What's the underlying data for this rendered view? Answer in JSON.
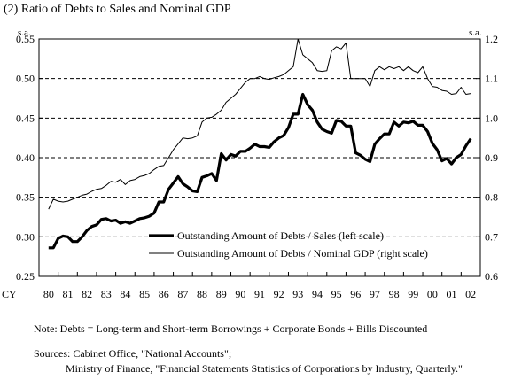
{
  "header": {
    "title": "(2) Ratio of Debts to Sales and Nominal GDP"
  },
  "chart_data": {
    "type": "line",
    "title": "(2) Ratio of Debts to Sales and Nominal GDP",
    "left_unit": "s.a.",
    "right_unit": "s.a.",
    "x_axis_label": "CY",
    "x_tick_labels": [
      "80",
      "81",
      "82",
      "83",
      "84",
      "85",
      "86",
      "87",
      "88",
      "89",
      "90",
      "91",
      "92",
      "93",
      "94",
      "95",
      "96",
      "97",
      "98",
      "99",
      "00",
      "01",
      "02"
    ],
    "x_range": [
      1980.0,
      2003.0
    ],
    "left_axis": {
      "range": [
        0.25,
        0.55
      ],
      "ticks": [
        "0.25",
        "0.30",
        "0.35",
        "0.40",
        "0.45",
        "0.50",
        "0.55"
      ]
    },
    "right_axis": {
      "range": [
        0.6,
        1.2
      ],
      "ticks": [
        "0.6",
        "0.7",
        "0.8",
        "0.9",
        "1.0",
        "1.1",
        "1.2"
      ]
    },
    "grid": "horizontal dashed",
    "legend_placement": "lower-right",
    "series": [
      {
        "name": "Outstanding Amount of Debts / Sales (left scale)",
        "axis": "left",
        "style": "thick",
        "points": [
          [
            1980.0,
            0.286
          ],
          [
            1980.25,
            0.286
          ],
          [
            1980.5,
            0.298
          ],
          [
            1980.75,
            0.301
          ],
          [
            1981.0,
            0.3
          ],
          [
            1981.25,
            0.294
          ],
          [
            1981.5,
            0.294
          ],
          [
            1981.75,
            0.3
          ],
          [
            1982.0,
            0.308
          ],
          [
            1982.25,
            0.313
          ],
          [
            1982.5,
            0.315
          ],
          [
            1982.75,
            0.322
          ],
          [
            1983.0,
            0.323
          ],
          [
            1983.25,
            0.32
          ],
          [
            1983.5,
            0.321
          ],
          [
            1983.75,
            0.317
          ],
          [
            1984.0,
            0.319
          ],
          [
            1984.25,
            0.317
          ],
          [
            1984.5,
            0.32
          ],
          [
            1984.75,
            0.323
          ],
          [
            1985.0,
            0.324
          ],
          [
            1985.25,
            0.326
          ],
          [
            1985.5,
            0.33
          ],
          [
            1985.75,
            0.344
          ],
          [
            1986.0,
            0.344
          ],
          [
            1986.25,
            0.36
          ],
          [
            1986.5,
            0.368
          ],
          [
            1986.75,
            0.376
          ],
          [
            1987.0,
            0.367
          ],
          [
            1987.25,
            0.363
          ],
          [
            1987.5,
            0.358
          ],
          [
            1987.75,
            0.357
          ],
          [
            1988.0,
            0.375
          ],
          [
            1988.25,
            0.377
          ],
          [
            1988.5,
            0.38
          ],
          [
            1988.75,
            0.371
          ],
          [
            1989.0,
            0.405
          ],
          [
            1989.25,
            0.397
          ],
          [
            1989.5,
            0.404
          ],
          [
            1989.75,
            0.402
          ],
          [
            1990.0,
            0.408
          ],
          [
            1990.25,
            0.408
          ],
          [
            1990.5,
            0.412
          ],
          [
            1990.75,
            0.417
          ],
          [
            1991.0,
            0.414
          ],
          [
            1991.25,
            0.414
          ],
          [
            1991.5,
            0.413
          ],
          [
            1991.75,
            0.42
          ],
          [
            1992.0,
            0.425
          ],
          [
            1992.25,
            0.428
          ],
          [
            1992.5,
            0.438
          ],
          [
            1992.75,
            0.455
          ],
          [
            1993.0,
            0.455
          ],
          [
            1993.25,
            0.48
          ],
          [
            1993.5,
            0.467
          ],
          [
            1993.75,
            0.46
          ],
          [
            1994.0,
            0.445
          ],
          [
            1994.25,
            0.436
          ],
          [
            1994.5,
            0.433
          ],
          [
            1994.75,
            0.431
          ],
          [
            1995.0,
            0.447
          ],
          [
            1995.25,
            0.446
          ],
          [
            1995.5,
            0.44
          ],
          [
            1995.75,
            0.44
          ],
          [
            1996.0,
            0.406
          ],
          [
            1996.25,
            0.403
          ],
          [
            1996.5,
            0.398
          ],
          [
            1996.75,
            0.395
          ],
          [
            1997.0,
            0.417
          ],
          [
            1997.25,
            0.424
          ],
          [
            1997.5,
            0.43
          ],
          [
            1997.75,
            0.43
          ],
          [
            1998.0,
            0.445
          ],
          [
            1998.25,
            0.44
          ],
          [
            1998.5,
            0.445
          ],
          [
            1998.75,
            0.444
          ],
          [
            1999.0,
            0.446
          ],
          [
            1999.25,
            0.441
          ],
          [
            1999.5,
            0.441
          ],
          [
            1999.75,
            0.433
          ],
          [
            2000.0,
            0.418
          ],
          [
            2000.25,
            0.41
          ],
          [
            2000.5,
            0.396
          ],
          [
            2000.75,
            0.399
          ],
          [
            2001.0,
            0.392
          ],
          [
            2001.25,
            0.4
          ],
          [
            2001.5,
            0.404
          ],
          [
            2001.75,
            0.415
          ],
          [
            2002.0,
            0.424
          ]
        ]
      },
      {
        "name": "Outstanding Amount of Debts / Nominal GDP (right scale)",
        "axis": "right",
        "style": "thin",
        "points": [
          [
            1980.0,
            0.77
          ],
          [
            1980.25,
            0.795
          ],
          [
            1980.5,
            0.79
          ],
          [
            1980.75,
            0.788
          ],
          [
            1981.0,
            0.79
          ],
          [
            1981.25,
            0.795
          ],
          [
            1981.5,
            0.8
          ],
          [
            1981.75,
            0.805
          ],
          [
            1982.0,
            0.808
          ],
          [
            1982.25,
            0.815
          ],
          [
            1982.5,
            0.82
          ],
          [
            1982.75,
            0.822
          ],
          [
            1983.0,
            0.83
          ],
          [
            1983.25,
            0.84
          ],
          [
            1983.5,
            0.838
          ],
          [
            1983.75,
            0.845
          ],
          [
            1984.0,
            0.832
          ],
          [
            1984.25,
            0.842
          ],
          [
            1984.5,
            0.845
          ],
          [
            1984.75,
            0.852
          ],
          [
            1985.0,
            0.855
          ],
          [
            1985.25,
            0.86
          ],
          [
            1985.5,
            0.87
          ],
          [
            1985.75,
            0.878
          ],
          [
            1986.0,
            0.88
          ],
          [
            1986.25,
            0.9
          ],
          [
            1986.5,
            0.92
          ],
          [
            1986.75,
            0.935
          ],
          [
            1987.0,
            0.95
          ],
          [
            1987.25,
            0.948
          ],
          [
            1987.5,
            0.95
          ],
          [
            1987.75,
            0.955
          ],
          [
            1988.0,
            0.99
          ],
          [
            1988.25,
            1.0
          ],
          [
            1988.5,
            1.002
          ],
          [
            1988.75,
            1.01
          ],
          [
            1989.0,
            1.02
          ],
          [
            1989.25,
            1.04
          ],
          [
            1989.5,
            1.05
          ],
          [
            1989.75,
            1.06
          ],
          [
            1990.0,
            1.075
          ],
          [
            1990.25,
            1.09
          ],
          [
            1990.5,
            1.1
          ],
          [
            1990.75,
            1.1
          ],
          [
            1991.0,
            1.105
          ],
          [
            1991.25,
            1.1
          ],
          [
            1991.5,
            1.098
          ],
          [
            1991.75,
            1.102
          ],
          [
            1992.0,
            1.105
          ],
          [
            1992.25,
            1.11
          ],
          [
            1992.5,
            1.12
          ],
          [
            1992.75,
            1.13
          ],
          [
            1993.0,
            1.2
          ],
          [
            1993.25,
            1.16
          ],
          [
            1993.5,
            1.15
          ],
          [
            1993.75,
            1.14
          ],
          [
            1994.0,
            1.12
          ],
          [
            1994.25,
            1.118
          ],
          [
            1994.5,
            1.12
          ],
          [
            1994.75,
            1.17
          ],
          [
            1995.0,
            1.18
          ],
          [
            1995.25,
            1.175
          ],
          [
            1995.5,
            1.19
          ],
          [
            1995.75,
            1.1
          ],
          [
            1996.0,
            1.1
          ],
          [
            1996.25,
            1.1
          ],
          [
            1996.5,
            1.1
          ],
          [
            1996.75,
            1.08
          ],
          [
            1997.0,
            1.12
          ],
          [
            1997.25,
            1.13
          ],
          [
            1997.5,
            1.122
          ],
          [
            1997.75,
            1.13
          ],
          [
            1998.0,
            1.125
          ],
          [
            1998.25,
            1.13
          ],
          [
            1998.5,
            1.12
          ],
          [
            1998.75,
            1.13
          ],
          [
            1999.0,
            1.12
          ],
          [
            1999.25,
            1.115
          ],
          [
            1999.5,
            1.13
          ],
          [
            1999.75,
            1.1
          ],
          [
            2000.0,
            1.08
          ],
          [
            2000.25,
            1.078
          ],
          [
            2000.5,
            1.07
          ],
          [
            2000.75,
            1.068
          ],
          [
            2001.0,
            1.06
          ],
          [
            2001.25,
            1.062
          ],
          [
            2001.5,
            1.078
          ],
          [
            2001.75,
            1.06
          ],
          [
            2002.0,
            1.062
          ]
        ]
      }
    ]
  },
  "notes": {
    "note": "Note: Debts = Long-term and Short-term Borrowings + Corporate Bonds + Bills Discounted",
    "sources_line1": "Sources: Cabinet Office, \"National Accounts\";",
    "sources_line2": "Ministry of Finance, \"Financial Statements Statistics of Corporations by Industry, Quarterly.\""
  }
}
